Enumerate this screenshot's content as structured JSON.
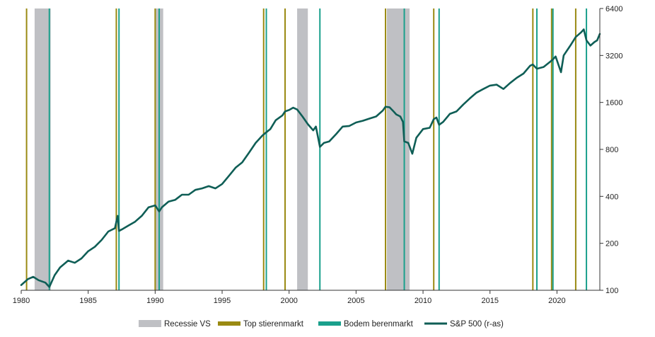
{
  "chart_data": {
    "type": "line",
    "title": "",
    "xlabel": "",
    "ylabel": "",
    "xlim": [
      1980.0,
      2023.2
    ],
    "ylim": [
      100,
      6400
    ],
    "y_scale": "log2",
    "y_axis_side": "right",
    "grid": false,
    "x_ticks": [
      1980,
      1985,
      1990,
      1995,
      2000,
      2005,
      2010,
      2015,
      2020
    ],
    "x_tick_labels": [
      "1980",
      "1985",
      "1990",
      "1995",
      "2000",
      "2005",
      "2010",
      "2015",
      "2020"
    ],
    "y_ticks": [
      100,
      200,
      400,
      800,
      1600,
      3200,
      6400
    ],
    "y_tick_labels": [
      "100",
      "200",
      "400",
      "800",
      "1600",
      "3200",
      "6400"
    ],
    "legend_position": "bottom",
    "legend": [
      {
        "key": "recession",
        "label": "Recessie VS",
        "kind": "band",
        "color": "#bfc0c4"
      },
      {
        "key": "bull_top",
        "label": "Top stierenmarkt",
        "kind": "line",
        "color": "#9a8a12"
      },
      {
        "key": "bear_bottom",
        "label": "Bodem berenmarkt",
        "kind": "line",
        "color": "#1aa08c"
      },
      {
        "key": "sp500",
        "label": "S&P 500 (r-as)",
        "kind": "series",
        "color": "#0f5e56"
      }
    ],
    "recessions": [
      [
        1981.0,
        1982.2
      ],
      [
        1990.0,
        1990.6
      ],
      [
        2000.6,
        2001.4
      ],
      [
        2007.3,
        2009.0
      ]
    ],
    "bull_market_tops": [
      1980.4,
      1987.1,
      1990.0,
      1998.1,
      1999.7,
      2007.2,
      2010.8,
      2018.2,
      2019.6,
      2021.4
    ],
    "bear_market_bottoms": [
      1982.1,
      1987.3,
      1990.3,
      1998.3,
      2002.3,
      2008.6,
      2011.2,
      2018.5,
      2019.7,
      2022.2
    ],
    "series": [
      {
        "name": "S&P 500 (r-as)",
        "x": [
          1980.0,
          1980.5,
          1980.9,
          1981.3,
          1981.8,
          1982.1,
          1982.5,
          1982.9,
          1983.5,
          1984.0,
          1984.5,
          1985.0,
          1985.5,
          1986.0,
          1986.5,
          1987.0,
          1987.2,
          1987.3,
          1987.5,
          1988.0,
          1988.5,
          1989.0,
          1989.5,
          1990.0,
          1990.3,
          1990.5,
          1991.0,
          1991.5,
          1992.0,
          1992.5,
          1993.0,
          1993.5,
          1994.0,
          1994.5,
          1995.0,
          1995.5,
          1996.0,
          1996.5,
          1997.0,
          1997.5,
          1998.0,
          1998.3,
          1998.6,
          1999.0,
          1999.5,
          1999.7,
          2000.0,
          2000.3,
          2000.6,
          2001.0,
          2001.4,
          2001.8,
          2002.0,
          2002.3,
          2002.6,
          2003.0,
          2003.5,
          2004.0,
          2004.5,
          2005.0,
          2005.5,
          2006.0,
          2006.5,
          2007.0,
          2007.2,
          2007.5,
          2007.8,
          2008.0,
          2008.3,
          2008.5,
          2008.6,
          2008.9,
          2009.2,
          2009.5,
          2010.0,
          2010.5,
          2010.8,
          2011.0,
          2011.2,
          2011.5,
          2012.0,
          2012.5,
          2013.0,
          2013.5,
          2014.0,
          2014.5,
          2015.0,
          2015.5,
          2016.0,
          2016.5,
          2017.0,
          2017.5,
          2018.0,
          2018.2,
          2018.5,
          2019.0,
          2019.5,
          2019.7,
          2019.9,
          2020.3,
          2020.5,
          2021.0,
          2021.4,
          2021.8,
          2022.0,
          2022.2,
          2022.5,
          2022.8,
          2023.0,
          2023.2
        ],
        "y": [
          108,
          118,
          122,
          116,
          112,
          105,
          125,
          140,
          155,
          150,
          160,
          178,
          190,
          210,
          238,
          250,
          300,
          240,
          245,
          260,
          275,
          300,
          340,
          350,
          320,
          340,
          370,
          380,
          410,
          410,
          440,
          450,
          465,
          450,
          480,
          540,
          610,
          660,
          760,
          880,
          980,
          1030,
          1080,
          1230,
          1320,
          1400,
          1430,
          1480,
          1440,
          1300,
          1160,
          1060,
          1120,
          830,
          880,
          900,
          1000,
          1120,
          1130,
          1190,
          1220,
          1260,
          1300,
          1420,
          1500,
          1490,
          1400,
          1340,
          1300,
          1200,
          900,
          880,
          750,
          950,
          1080,
          1100,
          1250,
          1280,
          1150,
          1200,
          1350,
          1400,
          1550,
          1700,
          1850,
          1950,
          2050,
          2080,
          1950,
          2130,
          2300,
          2450,
          2750,
          2800,
          2630,
          2700,
          2920,
          3020,
          3150,
          2500,
          3200,
          3700,
          4200,
          4500,
          4700,
          4000,
          3700,
          3900,
          4000,
          4400
        ]
      }
    ]
  }
}
